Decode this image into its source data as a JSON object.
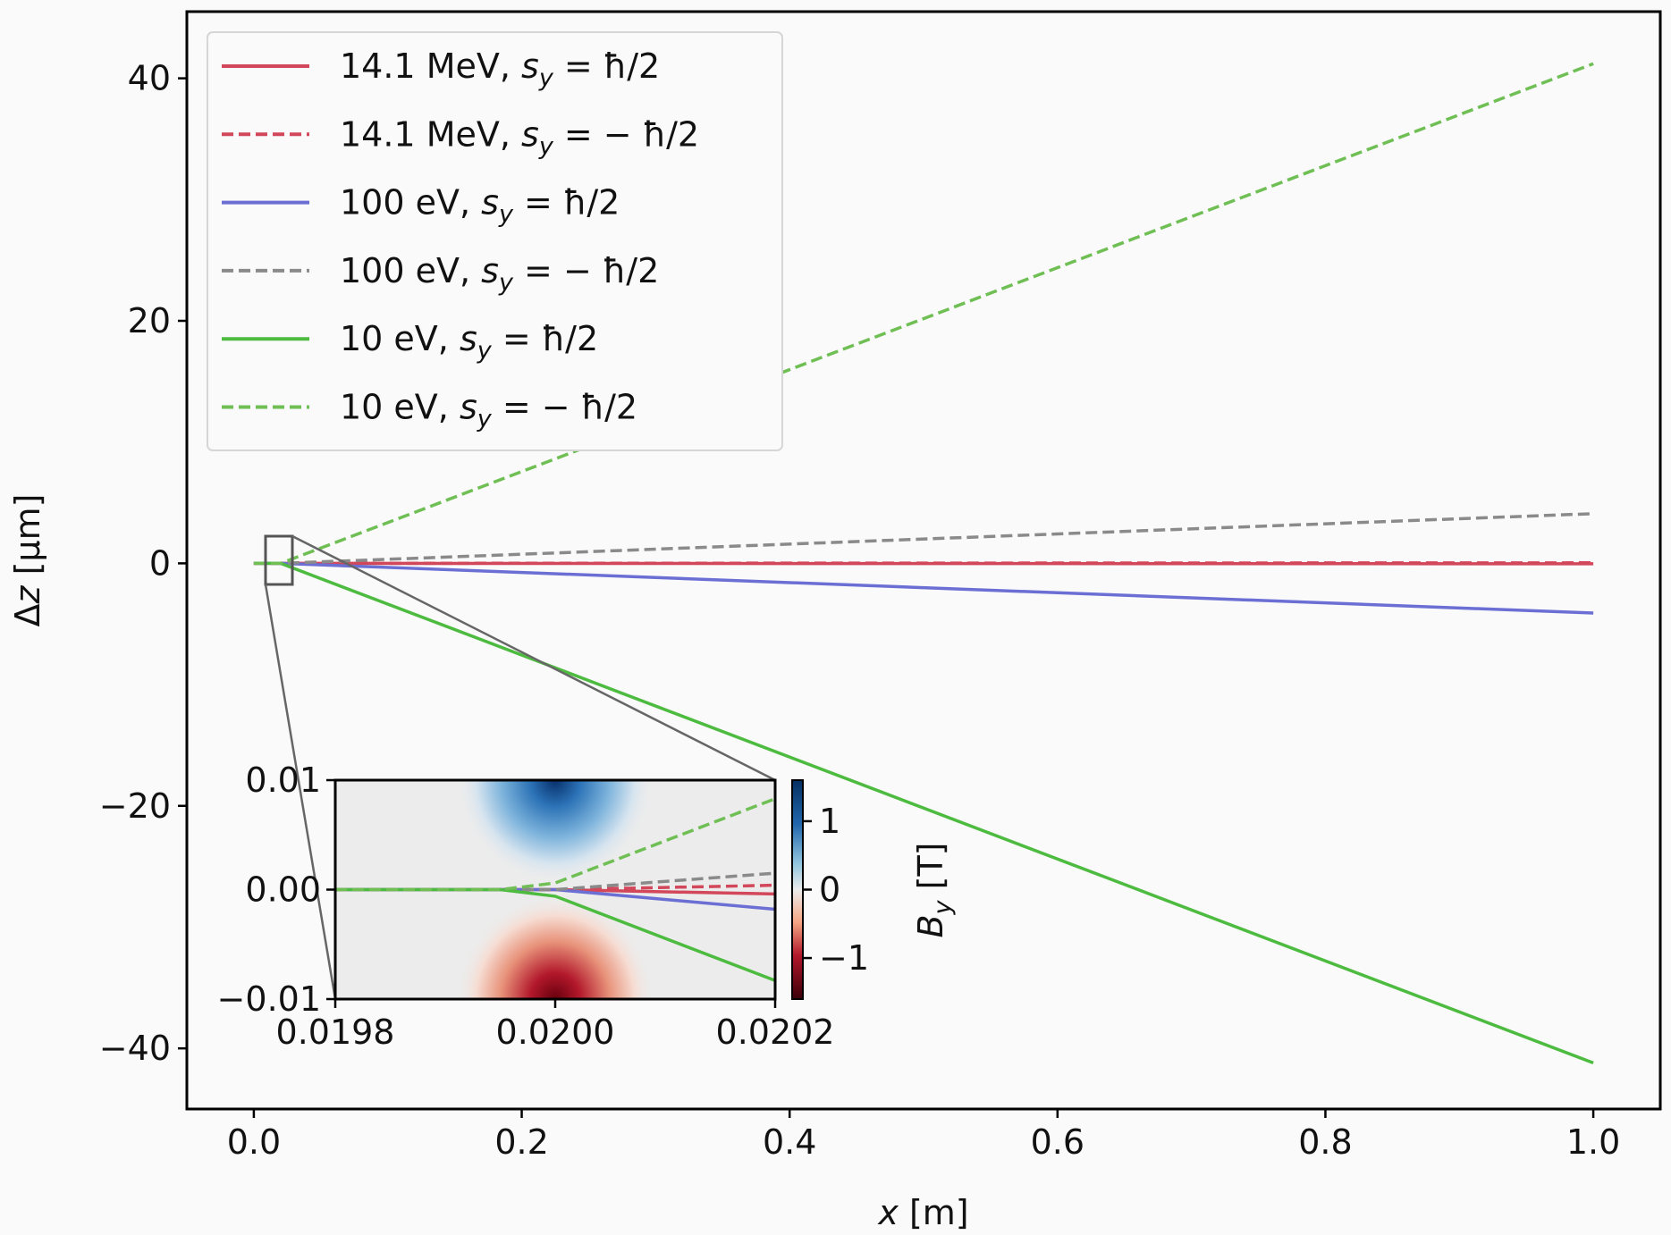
{
  "chart_data": [
    {
      "type": "line",
      "xlabel": "x [m]",
      "ylabel": "Δz [µm]",
      "xlim": [
        -0.05,
        1.05
      ],
      "ylim": [
        -45,
        45.5
      ],
      "xticks": [
        0.0,
        0.2,
        0.4,
        0.6,
        0.8,
        1.0
      ],
      "xtick_labels": [
        "0.0",
        "0.2",
        "0.4",
        "0.6",
        "0.8",
        "1.0"
      ],
      "yticks": [
        40,
        20,
        0,
        -20,
        -40
      ],
      "ytick_labels": [
        "40",
        "20",
        "0",
        "−20",
        "−40"
      ],
      "grid": false,
      "legend_position": "top-left",
      "series": [
        {
          "name": "14.1 MeV, s_y = ħ/2",
          "legend_label": "14.1 MeV,",
          "legend_math": "s",
          "legend_sub": "y",
          "legend_rhs": " = ħ/2",
          "color": "#d2475a",
          "dash": "solid",
          "x": [
            0,
            0.02,
            1.0
          ],
          "y": [
            0,
            0,
            -0.04
          ]
        },
        {
          "name": "14.1 MeV, s_y = −ħ/2",
          "legend_label": "14.1 MeV,",
          "legend_math": "s",
          "legend_sub": "y",
          "legend_rhs": " = − ħ/2",
          "color": "#d2475a",
          "dash": "dashed",
          "x": [
            0,
            0.02,
            1.0
          ],
          "y": [
            0,
            0,
            0.04
          ]
        },
        {
          "name": "100 eV, s_y = ħ/2",
          "legend_label": "100 eV,",
          "legend_math": "s",
          "legend_sub": "y",
          "legend_rhs": " = ħ/2",
          "color": "#6b6fd4",
          "dash": "solid",
          "x": [
            0,
            0.02,
            1.0
          ],
          "y": [
            0,
            0,
            -4.1
          ]
        },
        {
          "name": "100 eV, s_y = −ħ/2",
          "legend_label": "100 eV,",
          "legend_math": "s",
          "legend_sub": "y",
          "legend_rhs": " = − ħ/2",
          "color": "#8a8a8a",
          "dash": "dashed",
          "x": [
            0,
            0.02,
            1.0
          ],
          "y": [
            0,
            0,
            4.1
          ]
        },
        {
          "name": "10 eV, s_y = ħ/2",
          "legend_label": "10 eV,",
          "legend_math": "s",
          "legend_sub": "y",
          "legend_rhs": " = ħ/2",
          "color": "#4dbb3f",
          "dash": "solid",
          "x": [
            0,
            0.02,
            1.0
          ],
          "y": [
            0,
            0,
            -41.2
          ]
        },
        {
          "name": "10 eV, s_y = −ħ/2",
          "legend_label": "10 eV,",
          "legend_math": "s",
          "legend_sub": "y",
          "legend_rhs": " = − ħ/2",
          "color": "#6fbf55",
          "dash": "dashed",
          "x": [
            0,
            0.02,
            1.0
          ],
          "y": [
            0,
            0,
            41.2
          ]
        }
      ]
    },
    {
      "type": "heatmap",
      "role": "inset",
      "xlim": [
        0.0198,
        0.0202
      ],
      "ylim": [
        -0.01,
        0.01
      ],
      "xticks": [
        0.0198,
        0.02,
        0.0202
      ],
      "xtick_labels": [
        "0.0198",
        "0.0200",
        "0.0202"
      ],
      "yticks": [
        0.01,
        0.0,
        -0.01
      ],
      "ytick_labels": [
        "0.01",
        "0.00",
        "−0.01"
      ],
      "colorbar": {
        "label": "B",
        "label_sub": "y",
        "label_unit": " [T]",
        "range": [
          -1.6,
          1.6
        ],
        "ticks": [
          1,
          0,
          -1
        ],
        "tick_labels": [
          "1",
          "0",
          "−1"
        ],
        "colormap": "diverging red-white-blue"
      },
      "field_peaks": [
        {
          "x": 0.02,
          "y": 0.01,
          "value": 1.6,
          "color": "#1a5ea8"
        },
        {
          "x": 0.02,
          "y": -0.01,
          "value": -1.6,
          "color": "#8a0f1d"
        }
      ],
      "trajectories": [
        {
          "series": "14.1 MeV, s_y = ħ/2",
          "x": [
            0.0198,
            0.02,
            0.0202
          ],
          "y": [
            0,
            0,
            -0.0004
          ]
        },
        {
          "series": "14.1 MeV, s_y = −ħ/2",
          "x": [
            0.0198,
            0.02,
            0.0202
          ],
          "y": [
            0,
            0,
            0.0004
          ]
        },
        {
          "series": "100 eV, s_y = ħ/2",
          "x": [
            0.0198,
            0.02,
            0.0202
          ],
          "y": [
            0,
            0,
            -0.0018
          ]
        },
        {
          "series": "100 eV, s_y = −ħ/2",
          "x": [
            0.0198,
            0.02,
            0.0202
          ],
          "y": [
            0,
            0,
            0.0015
          ]
        },
        {
          "series": "10 eV, s_y = ħ/2",
          "x": [
            0.0198,
            0.01995,
            0.02,
            0.0202
          ],
          "y": [
            0,
            0,
            -0.0006,
            -0.0083
          ]
        },
        {
          "series": "10 eV, s_y = −ħ/2",
          "x": [
            0.0198,
            0.01995,
            0.02,
            0.0202
          ],
          "y": [
            0,
            0,
            0.0006,
            0.0083
          ]
        }
      ]
    }
  ]
}
